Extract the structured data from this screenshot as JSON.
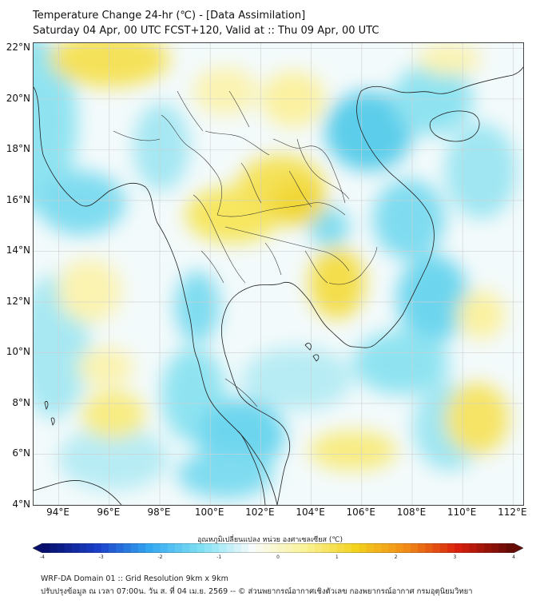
{
  "header": {
    "title": "Temperature Change 24-hr (℃) - [Data Assimilation]",
    "subtitle": "Saturday 04 Apr, 00 UTC FCST+120, Valid at :: Thu 09 Apr, 00 UTC"
  },
  "map": {
    "lat_labels": [
      "22°N",
      "20°N",
      "18°N",
      "16°N",
      "14°N",
      "12°N",
      "10°N",
      "8°N",
      "6°N",
      "4°N"
    ],
    "lon_labels": [
      "94°E",
      "96°E",
      "98°E",
      "100°E",
      "102°E",
      "104°E",
      "106°E",
      "108°E",
      "110°E",
      "112°E"
    ],
    "lat_range": [
      4,
      22.2
    ],
    "lon_range": [
      93,
      112.4
    ],
    "field_units": "°C",
    "warm_areas": [
      "northeast Thailand",
      "central Thailand",
      "Cambodia",
      "northern Myanmar",
      "South China Sea east of 110°E"
    ],
    "cool_areas": [
      "Andaman Sea coast",
      "Gulf of Thailand south",
      "Vietnam coast",
      "Laos north",
      "Malay Peninsula"
    ]
  },
  "colorbar": {
    "title": "อุณหภูมิเปลี่ยนแปลง หน่วย องศาเซลเซียส (℃)",
    "ticks": [
      "-4",
      "-3",
      "-2",
      "-1",
      "0",
      "1",
      "2",
      "3",
      "4"
    ],
    "range": [
      -4,
      4
    ],
    "colors": [
      "#07106e",
      "#1b3fc9",
      "#33a7f0",
      "#7fe0f4",
      "#f7fbfb",
      "#fbf39a",
      "#f3d21e",
      "#f18a17",
      "#d81f0d",
      "#660a06"
    ]
  },
  "footer": {
    "line1": "WRF-DA Domain 01 :: Grid Resolution 9km x 9km",
    "line2": "ปรับปรุงข้อมูล ณ เวลา 07:00น. วัน ส. ที่ 04 เม.ย. 2569 -- © ส่วนพยากรณ์อากาศเชิงตัวเลข กองพยากรณ์อากาศ กรมอุตุนิยมวิทยา"
  }
}
